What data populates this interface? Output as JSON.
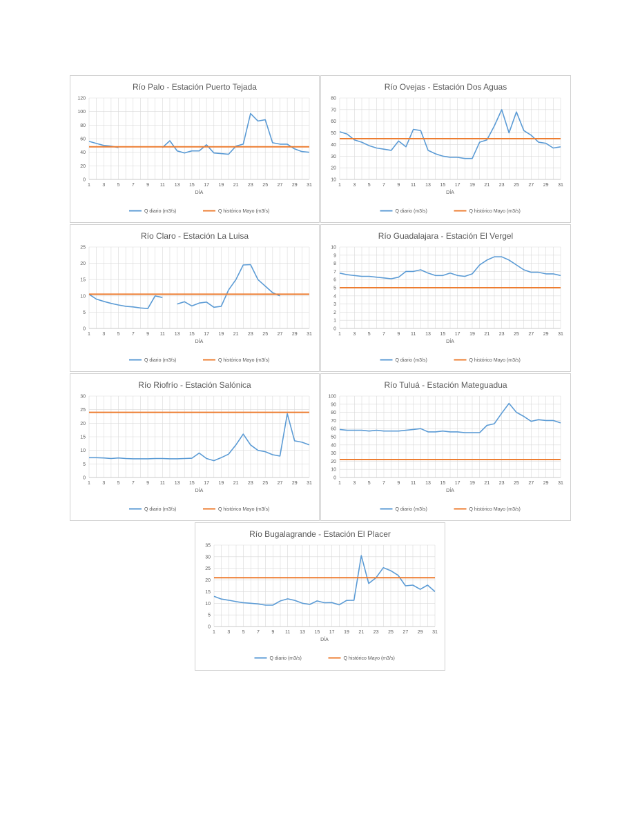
{
  "colors": {
    "daily": "#5b9bd5",
    "historic": "#ed7d31",
    "grid": "#d9d9d9"
  },
  "chart_data": [
    {
      "type": "line",
      "title": "Río Palo - Estación Puerto Tejada",
      "xlabel": "DÍA",
      "x_ticks": [
        "1",
        "3",
        "5",
        "7",
        "9",
        "11",
        "13",
        "15",
        "17",
        "19",
        "21",
        "23",
        "25",
        "27",
        "29",
        "31"
      ],
      "y_ticks": [
        "0",
        "20",
        "40",
        "60",
        "80",
        "100",
        "120"
      ],
      "xlim": [
        1,
        31
      ],
      "ylim": [
        0,
        120
      ],
      "grid": true,
      "legend": "bottom",
      "series": [
        {
          "name": "Q diario (m3/s)",
          "values": [
            56,
            53,
            50,
            49,
            47,
            null,
            null,
            null,
            null,
            null,
            47,
            57,
            42,
            39,
            42,
            42,
            51,
            39,
            38,
            37,
            49,
            52,
            97,
            86,
            88,
            54,
            52,
            52,
            45,
            41,
            40
          ]
        },
        {
          "name": "Q histórico Mayo (m3/s)",
          "values": [
            48,
            48,
            48,
            48,
            48,
            48,
            48,
            48,
            48,
            48,
            48,
            48,
            48,
            48,
            48,
            48,
            48,
            48,
            48,
            48,
            48,
            48,
            48,
            48,
            48,
            48,
            48,
            48,
            48,
            48,
            48
          ]
        }
      ]
    },
    {
      "type": "line",
      "title": "Río Ovejas - Estación Dos Aguas",
      "xlabel": "DÍA",
      "x_ticks": [
        "1",
        "3",
        "5",
        "7",
        "9",
        "11",
        "13",
        "15",
        "17",
        "19",
        "21",
        "23",
        "25",
        "27",
        "29",
        "31"
      ],
      "y_ticks": [
        "10",
        "20",
        "30",
        "40",
        "50",
        "60",
        "70",
        "80"
      ],
      "xlim": [
        1,
        31
      ],
      "ylim": [
        10,
        80
      ],
      "grid": true,
      "legend": "bottom",
      "series": [
        {
          "name": "Q diario (m3/s)",
          "values": [
            51,
            49,
            44,
            42,
            39,
            37,
            36,
            35,
            43,
            38,
            53,
            52,
            35,
            32,
            30,
            29,
            29,
            28,
            28,
            42,
            44,
            56,
            70,
            50,
            68,
            52,
            48,
            42,
            41,
            37,
            38
          ]
        },
        {
          "name": "Q histórico Mayo (m3/s)",
          "values": [
            45,
            45,
            45,
            45,
            45,
            45,
            45,
            45,
            45,
            45,
            45,
            45,
            45,
            45,
            45,
            45,
            45,
            45,
            45,
            45,
            45,
            45,
            45,
            45,
            45,
            45,
            45,
            45,
            45,
            45,
            45
          ]
        }
      ]
    },
    {
      "type": "line",
      "title": "Río Claro - Estación La Luisa",
      "xlabel": "DÍA",
      "x_ticks": [
        "1",
        "3",
        "5",
        "7",
        "9",
        "11",
        "13",
        "15",
        "17",
        "19",
        "21",
        "23",
        "25",
        "27",
        "29",
        "31"
      ],
      "y_ticks": [
        "0",
        "5",
        "10",
        "15",
        "20",
        "25"
      ],
      "xlim": [
        1,
        31
      ],
      "ylim": [
        0,
        25
      ],
      "grid": true,
      "legend": "bottom",
      "series": [
        {
          "name": "Q diario (m3/s)",
          "values": [
            10.5,
            9,
            8.3,
            7.7,
            7.2,
            6.8,
            6.6,
            6.3,
            6.1,
            10,
            9.5,
            null,
            7.5,
            8.2,
            6.9,
            7.8,
            8.1,
            6.5,
            6.8,
            11.8,
            15,
            19.5,
            19.6,
            15,
            13,
            11,
            10,
            null,
            null,
            null,
            null
          ]
        },
        {
          "name": "Q histórico Mayo (m3/s)",
          "values": [
            10.5,
            10.5,
            10.5,
            10.5,
            10.5,
            10.5,
            10.5,
            10.5,
            10.5,
            10.5,
            10.5,
            10.5,
            10.5,
            10.5,
            10.5,
            10.5,
            10.5,
            10.5,
            10.5,
            10.5,
            10.5,
            10.5,
            10.5,
            10.5,
            10.5,
            10.5,
            10.5,
            10.5,
            10.5,
            10.5,
            10.5
          ]
        }
      ]
    },
    {
      "type": "line",
      "title": "Río Guadalajara - Estación El Vergel",
      "xlabel": "DÍA",
      "x_ticks": [
        "1",
        "3",
        "5",
        "7",
        "9",
        "11",
        "13",
        "15",
        "17",
        "19",
        "21",
        "23",
        "25",
        "27",
        "29",
        "31"
      ],
      "y_ticks": [
        "0",
        "1",
        "2",
        "3",
        "4",
        "5",
        "6",
        "7",
        "8",
        "9",
        "10"
      ],
      "xlim": [
        1,
        31
      ],
      "ylim": [
        0,
        10
      ],
      "grid": true,
      "legend": "bottom",
      "series": [
        {
          "name": "Q diario (m3/s)",
          "values": [
            6.8,
            6.6,
            6.5,
            6.4,
            6.4,
            6.3,
            6.2,
            6.1,
            6.3,
            7,
            7,
            7.2,
            6.8,
            6.5,
            6.5,
            6.8,
            6.5,
            6.4,
            6.7,
            7.8,
            8.4,
            8.8,
            8.8,
            8.4,
            7.8,
            7.2,
            6.9,
            6.9,
            6.7,
            6.7,
            6.5
          ]
        },
        {
          "name": "Q histórico Mayo (m3/s)",
          "values": [
            5,
            5,
            5,
            5,
            5,
            5,
            5,
            5,
            5,
            5,
            5,
            5,
            5,
            5,
            5,
            5,
            5,
            5,
            5,
            5,
            5,
            5,
            5,
            5,
            5,
            5,
            5,
            5,
            5,
            5,
            5
          ]
        }
      ]
    },
    {
      "type": "line",
      "title": "Río Riofrío - Estación Salónica",
      "xlabel": "DÍA",
      "x_ticks": [
        "1",
        "3",
        "5",
        "7",
        "9",
        "11",
        "13",
        "15",
        "17",
        "19",
        "21",
        "23",
        "25",
        "27",
        "29",
        "31"
      ],
      "y_ticks": [
        "0",
        "5",
        "10",
        "15",
        "20",
        "25",
        "30"
      ],
      "xlim": [
        1,
        31
      ],
      "ylim": [
        0,
        30
      ],
      "grid": true,
      "legend": "bottom",
      "series": [
        {
          "name": "Q diario (m3/s)",
          "values": [
            7.3,
            7.3,
            7.2,
            7,
            7.2,
            7,
            6.9,
            6.9,
            6.9,
            7,
            7,
            6.9,
            6.9,
            7,
            7.1,
            9,
            7,
            6.2,
            7.3,
            8.6,
            12,
            16,
            12,
            10,
            9.5,
            8.4,
            7.9,
            23.5,
            13.5,
            13,
            12
          ]
        },
        {
          "name": "Q histórico Mayo (m3/s)",
          "values": [
            24,
            24,
            24,
            24,
            24,
            24,
            24,
            24,
            24,
            24,
            24,
            24,
            24,
            24,
            24,
            24,
            24,
            24,
            24,
            24,
            24,
            24,
            24,
            24,
            24,
            24,
            24,
            24,
            24,
            24,
            24
          ]
        }
      ]
    },
    {
      "type": "line",
      "title": "Río Tuluá - Estación Mateguadua",
      "xlabel": "DÍA",
      "x_ticks": [
        "1",
        "3",
        "5",
        "7",
        "9",
        "11",
        "13",
        "15",
        "17",
        "19",
        "21",
        "23",
        "25",
        "27",
        "29",
        "31"
      ],
      "y_ticks": [
        "0",
        "10",
        "20",
        "30",
        "40",
        "50",
        "60",
        "70",
        "80",
        "90",
        "100"
      ],
      "xlim": [
        1,
        31
      ],
      "ylim": [
        0,
        100
      ],
      "grid": true,
      "legend": "bottom",
      "series": [
        {
          "name": "Q diario (m3/s)",
          "values": [
            59,
            58,
            58,
            58,
            57,
            58,
            57,
            57,
            57,
            58,
            59,
            60,
            56,
            56,
            57,
            56,
            56,
            55,
            55,
            55,
            64,
            66,
            79,
            91,
            80,
            75,
            69,
            71,
            70,
            70,
            67
          ]
        },
        {
          "name": "Q histórico Mayo (m3/s)",
          "values": [
            22,
            22,
            22,
            22,
            22,
            22,
            22,
            22,
            22,
            22,
            22,
            22,
            22,
            22,
            22,
            22,
            22,
            22,
            22,
            22,
            22,
            22,
            22,
            22,
            22,
            22,
            22,
            22,
            22,
            22,
            22
          ]
        }
      ]
    },
    {
      "type": "line",
      "title": "Río Bugalagrande - Estación El Placer",
      "xlabel": "DÍA",
      "x_ticks": [
        "1",
        "3",
        "5",
        "7",
        "9",
        "11",
        "13",
        "15",
        "17",
        "19",
        "21",
        "23",
        "25",
        "27",
        "29",
        "31"
      ],
      "y_ticks": [
        "0",
        "5",
        "10",
        "15",
        "20",
        "25",
        "30",
        "35"
      ],
      "xlim": [
        1,
        31
      ],
      "ylim": [
        0,
        35
      ],
      "grid": true,
      "legend": "bottom",
      "series": [
        {
          "name": "Q diario (m3/s)",
          "values": [
            13,
            11.8,
            11.3,
            10.7,
            10.2,
            10,
            9.7,
            9.2,
            9.2,
            11,
            11.9,
            11.2,
            10,
            9.5,
            11,
            10.2,
            10.3,
            9.3,
            11.2,
            11.3,
            30.5,
            18.5,
            21,
            25.3,
            24,
            22,
            17.5,
            17.8,
            16,
            17.8,
            15
          ]
        },
        {
          "name": "Q histórico Mayo (m3/s)",
          "values": [
            21,
            21,
            21,
            21,
            21,
            21,
            21,
            21,
            21,
            21,
            21,
            21,
            21,
            21,
            21,
            21,
            21,
            21,
            21,
            21,
            21,
            21,
            21,
            21,
            21,
            21,
            21,
            21,
            21,
            21,
            21
          ]
        }
      ]
    }
  ]
}
